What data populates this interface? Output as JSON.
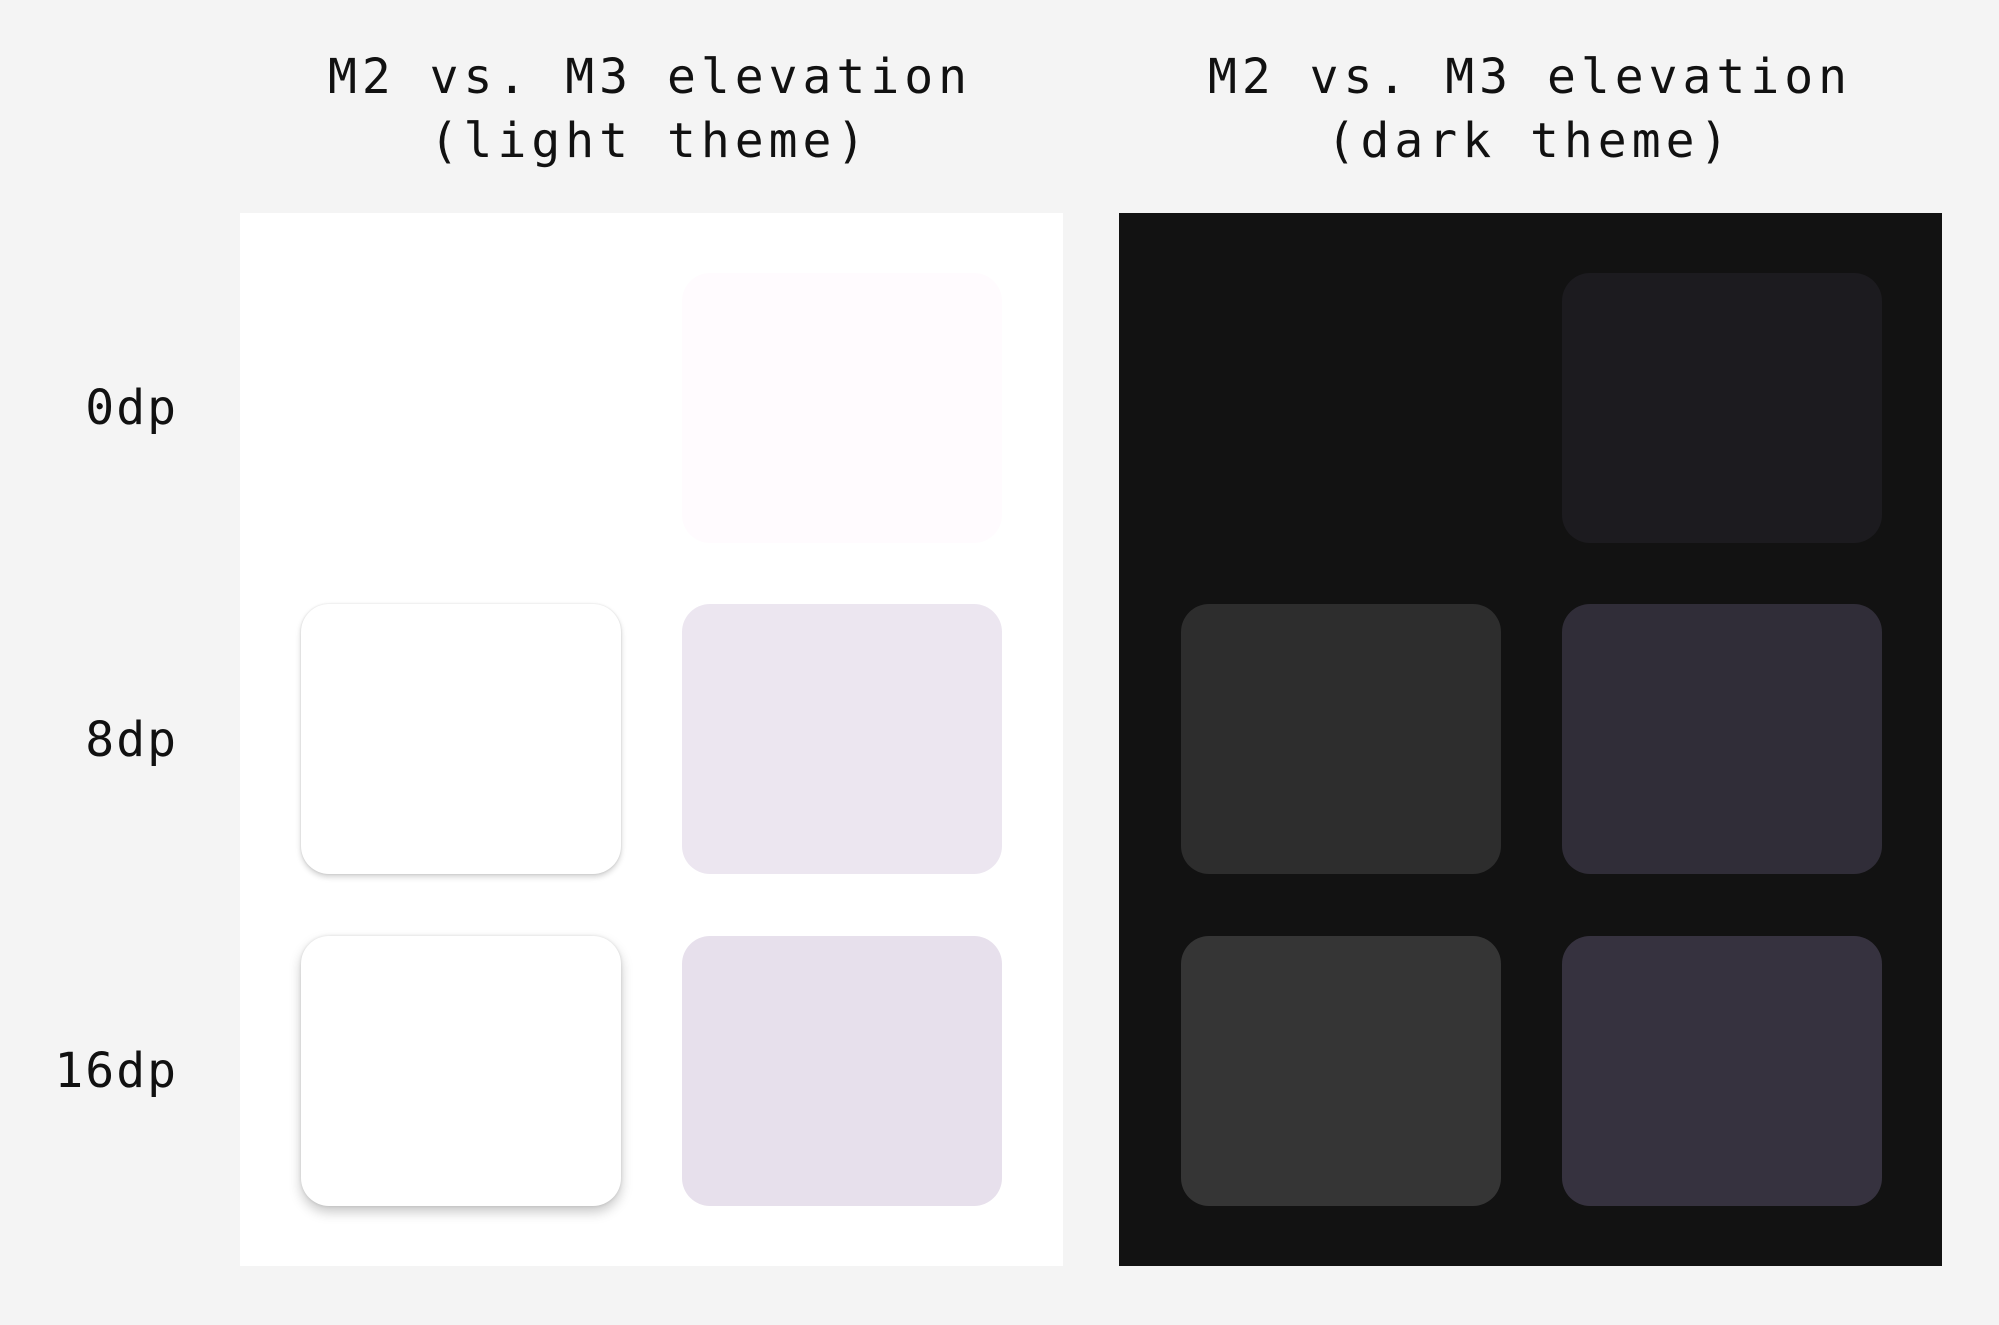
{
  "panels": [
    {
      "title_lines": [
        "M2 vs. M3 elevation",
        "(light theme)"
      ]
    },
    {
      "title_lines": [
        "M2 vs. M3 elevation",
        "(dark theme)"
      ]
    }
  ],
  "rows": [
    {
      "label": "0dp"
    },
    {
      "label": "8dp"
    },
    {
      "label": "16dp"
    }
  ]
}
